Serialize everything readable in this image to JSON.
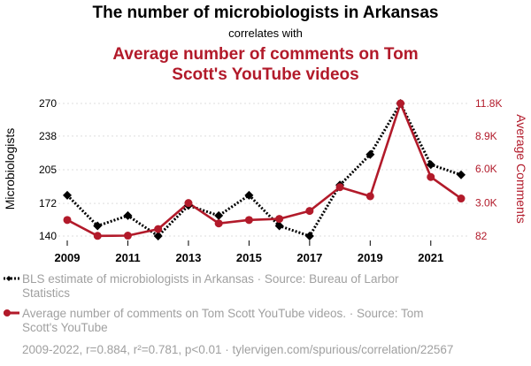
{
  "colors": {
    "series1": "#000000",
    "series2": "#b21a2a",
    "muted": "#a0a0a0"
  },
  "chart_data": {
    "type": "line",
    "title": "The number of microbiologists in Arkansas",
    "subtitle": "correlates with",
    "title2_lines": [
      "Average number of comments on Tom",
      "Scott's YouTube videos"
    ],
    "x": [
      2009,
      2010,
      2011,
      2012,
      2013,
      2014,
      2015,
      2016,
      2017,
      2018,
      2019,
      2020,
      2021,
      2022
    ],
    "x_tick_labels": [
      "2009",
      "2011",
      "2013",
      "2015",
      "2017",
      "2019",
      "2021"
    ],
    "x_tick_values": [
      2009,
      2011,
      2013,
      2015,
      2017,
      2019,
      2021
    ],
    "xlim": [
      2009,
      2022
    ],
    "left_axis": {
      "label": "Microbiologists",
      "ylim": [
        140,
        270
      ],
      "ticks": [
        140,
        172,
        205,
        238,
        270
      ],
      "tick_labels": [
        "140",
        "172",
        "205",
        "238",
        "270"
      ]
    },
    "right_axis": {
      "label": "Average Comments",
      "ylim": [
        82,
        11800
      ],
      "ticks": [
        82,
        3000,
        6000,
        8900,
        11800
      ],
      "tick_labels": [
        "82",
        "3.0K",
        "6.0K",
        "8.9K",
        "11.8K"
      ]
    },
    "series": [
      {
        "name": "BLS estimate of microbiologists in Arkansas",
        "axis": "left",
        "style": "dotted",
        "marker": "diamond",
        "values": [
          180,
          150,
          160,
          140,
          170,
          160,
          180,
          150,
          140,
          190,
          220,
          270,
          210,
          200
        ]
      },
      {
        "name": "Average number of comments on Tom Scott YouTube videos.",
        "axis": "right",
        "style": "solid",
        "marker": "circle",
        "values": [
          1500,
          100,
          120,
          700,
          3000,
          1200,
          1500,
          1600,
          2300,
          4400,
          3600,
          11800,
          5300,
          3400
        ]
      }
    ],
    "legend": [
      {
        "lines": [
          "BLS estimate of microbiologists in Arkansas · Source: Bureau of Larbor",
          "Statistics"
        ]
      },
      {
        "lines": [
          "Average number of comments on Tom Scott YouTube videos. · Source: Tom",
          "Scott's YouTube"
        ]
      }
    ],
    "footer": "2009-2022, r=0.884, r²=0.781, p<0.01 · tylervigen.com/spurious/correlation/22567"
  }
}
